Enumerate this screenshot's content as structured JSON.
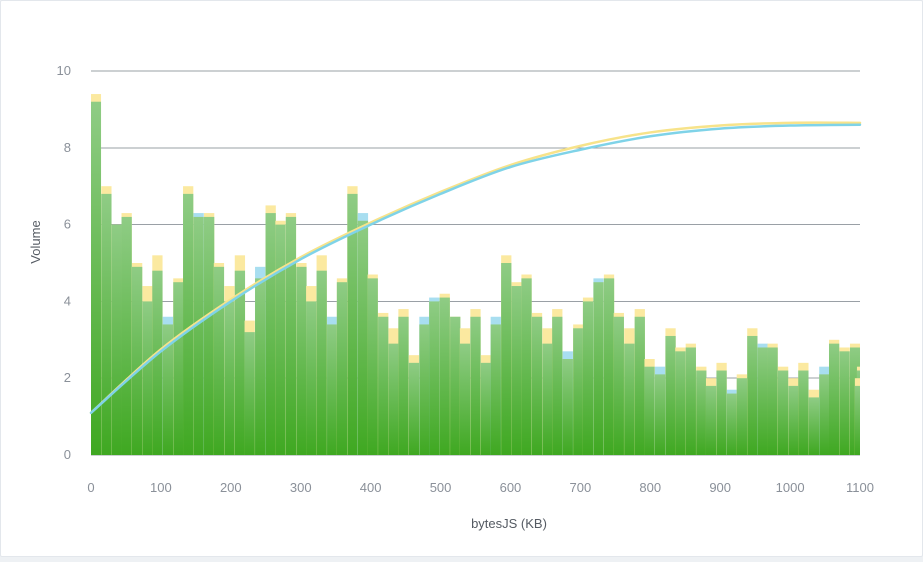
{
  "chart_data": {
    "type": "bar",
    "xlabel": "bytesJS (KB)",
    "ylabel": "Volume",
    "xlim": [
      0,
      1100
    ],
    "ylim": [
      0,
      10
    ],
    "xticks": [
      "0",
      "100",
      "200",
      "300",
      "400",
      "500",
      "600",
      "700",
      "800",
      "900",
      "1000",
      "1100"
    ],
    "yticks": [
      "0",
      "2",
      "4",
      "6",
      "8",
      "10"
    ],
    "grid": "horizontal",
    "bin_width": 14.7,
    "bars": [
      {
        "x": 7,
        "back": 9.4,
        "front": 9.2,
        "back_color": "#fbe9a0"
      },
      {
        "x": 22,
        "back": 7.0,
        "front": 6.8,
        "back_color": "#fbe9a0"
      },
      {
        "x": 37,
        "back": 6.0,
        "front": 6.0,
        "back_color": "#fbe9a0"
      },
      {
        "x": 51,
        "back": 6.3,
        "front": 6.2,
        "back_color": "#fbe9a0"
      },
      {
        "x": 66,
        "back": 5.0,
        "front": 4.9,
        "back_color": "#fbe9a0"
      },
      {
        "x": 81,
        "back": 4.4,
        "front": 4.0,
        "back_color": "#fbe9a0"
      },
      {
        "x": 95,
        "back": 5.2,
        "front": 4.8,
        "back_color": "#fbe9a0"
      },
      {
        "x": 110,
        "back": 3.6,
        "front": 3.4,
        "back_color": "#a8def0"
      },
      {
        "x": 125,
        "back": 4.6,
        "front": 4.5,
        "back_color": "#fbe9a0"
      },
      {
        "x": 139,
        "back": 7.0,
        "front": 6.8,
        "back_color": "#fbe9a0"
      },
      {
        "x": 154,
        "back": 6.3,
        "front": 6.2,
        "back_color": "#a8def0"
      },
      {
        "x": 169,
        "back": 6.3,
        "front": 6.2,
        "back_color": "#fbe9a0"
      },
      {
        "x": 183,
        "back": 5.0,
        "front": 4.9,
        "back_color": "#fbe9a0"
      },
      {
        "x": 198,
        "back": 4.4,
        "front": 4.0,
        "back_color": "#fbe9a0"
      },
      {
        "x": 213,
        "back": 5.2,
        "front": 4.8,
        "back_color": "#fbe9a0"
      },
      {
        "x": 227,
        "back": 3.5,
        "front": 3.2,
        "back_color": "#fbe9a0"
      },
      {
        "x": 242,
        "back": 4.9,
        "front": 4.6,
        "back_color": "#a8def0"
      },
      {
        "x": 257,
        "back": 6.5,
        "front": 6.3,
        "back_color": "#fbe9a0"
      },
      {
        "x": 271,
        "back": 6.1,
        "front": 6.0,
        "back_color": "#fbe9a0"
      },
      {
        "x": 286,
        "back": 6.3,
        "front": 6.2,
        "back_color": "#fbe9a0"
      },
      {
        "x": 301,
        "back": 5.0,
        "front": 4.9,
        "back_color": "#fbe9a0"
      },
      {
        "x": 315,
        "back": 4.4,
        "front": 4.0,
        "back_color": "#fbe9a0"
      },
      {
        "x": 330,
        "back": 5.2,
        "front": 4.8,
        "back_color": "#fbe9a0"
      },
      {
        "x": 345,
        "back": 3.6,
        "front": 3.4,
        "back_color": "#a8def0"
      },
      {
        "x": 359,
        "back": 4.6,
        "front": 4.5,
        "back_color": "#fbe9a0"
      },
      {
        "x": 374,
        "back": 7.0,
        "front": 6.8,
        "back_color": "#fbe9a0"
      },
      {
        "x": 389,
        "back": 6.3,
        "front": 6.1,
        "back_color": "#a8def0"
      },
      {
        "x": 403,
        "back": 4.7,
        "front": 4.6,
        "back_color": "#fbe9a0"
      },
      {
        "x": 418,
        "back": 3.7,
        "front": 3.6,
        "back_color": "#fbe9a0"
      },
      {
        "x": 433,
        "back": 3.3,
        "front": 2.9,
        "back_color": "#fbe9a0"
      },
      {
        "x": 447,
        "back": 3.8,
        "front": 3.6,
        "back_color": "#fbe9a0"
      },
      {
        "x": 462,
        "back": 2.6,
        "front": 2.4,
        "back_color": "#fbe9a0"
      },
      {
        "x": 477,
        "back": 3.6,
        "front": 3.4,
        "back_color": "#a8def0"
      },
      {
        "x": 491,
        "back": 4.1,
        "front": 4.0,
        "back_color": "#a8def0"
      },
      {
        "x": 506,
        "back": 4.2,
        "front": 4.1,
        "back_color": "#fbe9a0"
      },
      {
        "x": 521,
        "back": 3.6,
        "front": 3.6,
        "back_color": "#fbe9a0"
      },
      {
        "x": 535,
        "back": 3.3,
        "front": 2.9,
        "back_color": "#fbe9a0"
      },
      {
        "x": 550,
        "back": 3.8,
        "front": 3.6,
        "back_color": "#fbe9a0"
      },
      {
        "x": 565,
        "back": 2.6,
        "front": 2.4,
        "back_color": "#fbe9a0"
      },
      {
        "x": 579,
        "back": 3.6,
        "front": 3.4,
        "back_color": "#a8def0"
      },
      {
        "x": 594,
        "back": 5.2,
        "front": 5.0,
        "back_color": "#fbe9a0"
      },
      {
        "x": 609,
        "back": 4.5,
        "front": 4.4,
        "back_color": "#fbe9a0"
      },
      {
        "x": 623,
        "back": 4.7,
        "front": 4.6,
        "back_color": "#fbe9a0"
      },
      {
        "x": 638,
        "back": 3.7,
        "front": 3.6,
        "back_color": "#fbe9a0"
      },
      {
        "x": 653,
        "back": 3.3,
        "front": 2.9,
        "back_color": "#fbe9a0"
      },
      {
        "x": 667,
        "back": 3.8,
        "front": 3.6,
        "back_color": "#fbe9a0"
      },
      {
        "x": 682,
        "back": 2.7,
        "front": 2.5,
        "back_color": "#a8def0"
      },
      {
        "x": 697,
        "back": 3.4,
        "front": 3.3,
        "back_color": "#fbe9a0"
      },
      {
        "x": 711,
        "back": 4.1,
        "front": 4.0,
        "back_color": "#fbe9a0"
      },
      {
        "x": 726,
        "back": 4.6,
        "front": 4.5,
        "back_color": "#a8def0"
      },
      {
        "x": 741,
        "back": 4.7,
        "front": 4.6,
        "back_color": "#fbe9a0"
      },
      {
        "x": 755,
        "back": 3.7,
        "front": 3.6,
        "back_color": "#fbe9a0"
      },
      {
        "x": 770,
        "back": 3.3,
        "front": 2.9,
        "back_color": "#fbe9a0"
      },
      {
        "x": 785,
        "back": 3.8,
        "front": 3.6,
        "back_color": "#fbe9a0"
      },
      {
        "x": 799,
        "back": 2.5,
        "front": 2.3,
        "back_color": "#fbe9a0"
      },
      {
        "x": 814,
        "back": 2.3,
        "front": 2.1,
        "back_color": "#a8def0"
      },
      {
        "x": 829,
        "back": 3.3,
        "front": 3.1,
        "back_color": "#fbe9a0"
      },
      {
        "x": 843,
        "back": 2.8,
        "front": 2.7,
        "back_color": "#fbe9a0"
      },
      {
        "x": 858,
        "back": 2.9,
        "front": 2.8,
        "back_color": "#fbe9a0"
      },
      {
        "x": 873,
        "back": 2.3,
        "front": 2.2,
        "back_color": "#fbe9a0"
      },
      {
        "x": 887,
        "back": 2.0,
        "front": 1.8,
        "back_color": "#fbe9a0"
      },
      {
        "x": 902,
        "back": 2.4,
        "front": 2.2,
        "back_color": "#fbe9a0"
      },
      {
        "x": 917,
        "back": 1.7,
        "front": 1.6,
        "back_color": "#a8def0"
      },
      {
        "x": 931,
        "back": 2.1,
        "front": 2.0,
        "back_color": "#fbe9a0"
      },
      {
        "x": 946,
        "back": 3.3,
        "front": 3.1,
        "back_color": "#fbe9a0"
      },
      {
        "x": 961,
        "back": 2.9,
        "front": 2.8,
        "back_color": "#a8def0"
      },
      {
        "x": 975,
        "back": 2.9,
        "front": 2.8,
        "back_color": "#fbe9a0"
      },
      {
        "x": 990,
        "back": 2.3,
        "front": 2.2,
        "back_color": "#fbe9a0"
      },
      {
        "x": 1005,
        "back": 2.0,
        "front": 1.8,
        "back_color": "#fbe9a0"
      },
      {
        "x": 1019,
        "back": 2.4,
        "front": 2.2,
        "back_color": "#fbe9a0"
      },
      {
        "x": 1034,
        "back": 1.7,
        "front": 1.5,
        "back_color": "#fbe9a0"
      },
      {
        "x": 1049,
        "back": 2.3,
        "front": 2.1,
        "back_color": "#a8def0"
      },
      {
        "x": 1063,
        "back": 3.0,
        "front": 2.9,
        "back_color": "#fbe9a0"
      },
      {
        "x": 1078,
        "back": 2.8,
        "front": 2.7,
        "back_color": "#fbe9a0"
      },
      {
        "x": 1093,
        "back": 2.9,
        "front": 2.8,
        "back_color": "#fbe9a0"
      },
      {
        "x": 1103,
        "back": 2.3,
        "front": 2.2,
        "back_color": "#fbe9a0"
      },
      {
        "x": 1100,
        "back": 2.0,
        "front": 1.8,
        "back_color": "#fbe9a0"
      }
    ],
    "lines": [
      {
        "color": "#f7e38a",
        "points": [
          [
            0,
            1.1
          ],
          [
            100,
            2.75
          ],
          [
            200,
            4.05
          ],
          [
            300,
            5.15
          ],
          [
            400,
            6.05
          ],
          [
            500,
            6.85
          ],
          [
            600,
            7.55
          ],
          [
            700,
            8.05
          ],
          [
            800,
            8.4
          ],
          [
            900,
            8.58
          ],
          [
            1000,
            8.65
          ],
          [
            1100,
            8.65
          ]
        ]
      },
      {
        "color": "#7fd3e8",
        "points": [
          [
            0,
            1.1
          ],
          [
            100,
            2.7
          ],
          [
            200,
            4.0
          ],
          [
            300,
            5.1
          ],
          [
            400,
            6.0
          ],
          [
            500,
            6.8
          ],
          [
            600,
            7.5
          ],
          [
            700,
            7.95
          ],
          [
            800,
            8.3
          ],
          [
            900,
            8.5
          ],
          [
            1000,
            8.58
          ],
          [
            1100,
            8.6
          ]
        ]
      }
    ],
    "colors": {
      "grid": "#9aa0a6",
      "bar_front_top": "#8fcc85",
      "bar_front_bottom": "#3fa821",
      "tick_text": "#8a9099",
      "axis_title": "#555b63"
    }
  }
}
